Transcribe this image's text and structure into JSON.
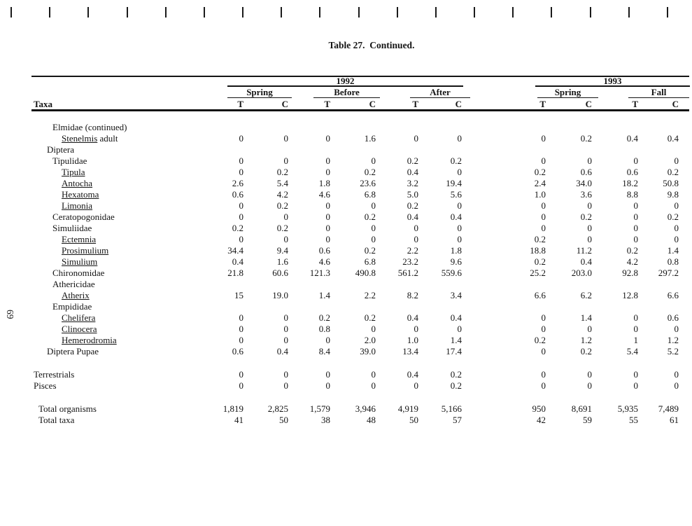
{
  "page": {
    "title": "Table 27.  Continued.",
    "page_number": "69",
    "top_tick_count": 18,
    "ink_color": "#141414",
    "paper_color": "#ffffff"
  },
  "table": {
    "header": {
      "taxa": "Taxa",
      "g1992": "1992",
      "g1993": "1993",
      "spring92": "Spring",
      "before92": "Before",
      "after92": "After",
      "spring93": "Spring",
      "fall93": "Fall",
      "t": "T",
      "c": "C"
    },
    "columns": [
      "1992 Spring T",
      "1992 Spring C",
      "1992 Before T",
      "1992 Before C",
      "1992 After T",
      "1992 After C",
      "1993 Spring T",
      "1993 Spring C",
      "1993 Fall T",
      "1993 Fall C"
    ],
    "rows": [
      {
        "label": "Elmidae (continued)",
        "indent": 2,
        "underline": false,
        "suffix": "",
        "values": [
          "",
          "",
          "",
          "",
          "",
          "",
          "",
          "",
          "",
          ""
        ]
      },
      {
        "label": "Stenelmis",
        "indent": 3,
        "underline": true,
        "suffix": " adult",
        "values": [
          "0",
          "0",
          "0",
          "1.6",
          "0",
          "0",
          "0",
          "0.2",
          "0.4",
          "0.4"
        ]
      },
      {
        "label": "Diptera",
        "indent": 1,
        "underline": false,
        "suffix": "",
        "values": [
          "",
          "",
          "",
          "",
          "",
          "",
          "",
          "",
          "",
          ""
        ]
      },
      {
        "label": "Tipulidae",
        "indent": 2,
        "underline": false,
        "suffix": "",
        "values": [
          "0",
          "0",
          "0",
          "0",
          "0.2",
          "0.2",
          "0",
          "0",
          "0",
          "0"
        ]
      },
      {
        "label": "Tipula",
        "indent": 3,
        "underline": true,
        "suffix": "",
        "values": [
          "0",
          "0.2",
          "0",
          "0.2",
          "0.4",
          "0",
          "0.2",
          "0.6",
          "0.6",
          "0.2"
        ]
      },
      {
        "label": "Antocha",
        "indent": 3,
        "underline": true,
        "suffix": "",
        "values": [
          "2.6",
          "5.4",
          "1.8",
          "23.6",
          "3.2",
          "19.4",
          "2.4",
          "34.0",
          "18.2",
          "50.8"
        ]
      },
      {
        "label": "Hexatoma",
        "indent": 3,
        "underline": true,
        "suffix": "",
        "values": [
          "0.6",
          "4.2",
          "4.6",
          "6.8",
          "5.0",
          "5.6",
          "1.0",
          "3.6",
          "8.8",
          "9.8"
        ]
      },
      {
        "label": "Limonia",
        "indent": 3,
        "underline": true,
        "suffix": "",
        "values": [
          "0",
          "0.2",
          "0",
          "0",
          "0.2",
          "0",
          "0",
          "0",
          "0",
          "0"
        ]
      },
      {
        "label": "Ceratopogonidae",
        "indent": 2,
        "underline": false,
        "suffix": "",
        "values": [
          "0",
          "0",
          "0",
          "0.2",
          "0.4",
          "0.4",
          "0",
          "0.2",
          "0",
          "0.2"
        ]
      },
      {
        "label": "Simuliidae",
        "indent": 2,
        "underline": false,
        "suffix": "",
        "values": [
          "0.2",
          "0.2",
          "0",
          "0",
          "0",
          "0",
          "0",
          "0",
          "0",
          "0"
        ]
      },
      {
        "label": "Ectemnia",
        "indent": 3,
        "underline": true,
        "suffix": "",
        "values": [
          "0",
          "0",
          "0",
          "0",
          "0",
          "0",
          "0.2",
          "0",
          "0",
          "0"
        ]
      },
      {
        "label": "Prosimulium",
        "indent": 3,
        "underline": true,
        "suffix": "",
        "values": [
          "34.4",
          "9.4",
          "0.6",
          "0.2",
          "2.2",
          "1.8",
          "18.8",
          "11.2",
          "0.2",
          "1.4"
        ]
      },
      {
        "label": "Simulium",
        "indent": 3,
        "underline": true,
        "suffix": "",
        "values": [
          "0.4",
          "1.6",
          "4.6",
          "6.8",
          "23.2",
          "9.6",
          "0.2",
          "0.4",
          "4.2",
          "0.8"
        ]
      },
      {
        "label": "Chironomidae",
        "indent": 2,
        "underline": false,
        "suffix": "",
        "values": [
          "21.8",
          "60.6",
          "121.3",
          "490.8",
          "561.2",
          "559.6",
          "25.2",
          "203.0",
          "92.8",
          "297.2"
        ]
      },
      {
        "label": "Athericidae",
        "indent": 2,
        "underline": false,
        "suffix": "",
        "values": [
          "",
          "",
          "",
          "",
          "",
          "",
          "",
          "",
          "",
          ""
        ]
      },
      {
        "label": "Atherix",
        "indent": 3,
        "underline": true,
        "suffix": "",
        "values": [
          "15",
          "19.0",
          "1.4",
          "2.2",
          "8.2",
          "3.4",
          "6.6",
          "6.2",
          "12.8",
          "6.6"
        ]
      },
      {
        "label": "Empididae",
        "indent": 2,
        "underline": false,
        "suffix": "",
        "values": [
          "",
          "",
          "",
          "",
          "",
          "",
          "",
          "",
          "",
          ""
        ]
      },
      {
        "label": "Chelifera",
        "indent": 3,
        "underline": true,
        "suffix": "",
        "values": [
          "0",
          "0",
          "0.2",
          "0.2",
          "0.4",
          "0.4",
          "0",
          "1.4",
          "0",
          "0.6"
        ]
      },
      {
        "label": "Clinocera",
        "indent": 3,
        "underline": true,
        "suffix": "",
        "values": [
          "0",
          "0",
          "0.8",
          "0",
          "0",
          "0",
          "0",
          "0",
          "0",
          "0"
        ]
      },
      {
        "label": "Hemerodromia",
        "indent": 3,
        "underline": true,
        "suffix": "",
        "values": [
          "0",
          "0",
          "0",
          "2.0",
          "1.0",
          "1.4",
          "0.2",
          "1.2",
          "1",
          "1.2"
        ]
      },
      {
        "label": "Diptera Pupae",
        "indent": 1,
        "underline": false,
        "suffix": "",
        "values": [
          "0.6",
          "0.4",
          "8.4",
          "39.0",
          "13.4",
          "17.4",
          "0",
          "0.2",
          "5.4",
          "5.2"
        ]
      },
      {
        "spacer": true
      },
      {
        "label": "Terrestrials",
        "indent": 0,
        "underline": false,
        "suffix": "",
        "values": [
          "0",
          "0",
          "0",
          "0",
          "0.4",
          "0.2",
          "0",
          "0",
          "0",
          "0"
        ]
      },
      {
        "label": "Pisces",
        "indent": 0,
        "underline": false,
        "suffix": "",
        "values": [
          "0",
          "0",
          "0",
          "0",
          "0",
          "0.2",
          "0",
          "0",
          "0",
          "0"
        ]
      },
      {
        "spacer": true
      },
      {
        "label": "Total organisms",
        "indent": "t",
        "underline": false,
        "suffix": "",
        "values": [
          "1,819",
          "2,825",
          "1,579",
          "3,946",
          "4,919",
          "5,166",
          "950",
          "8,691",
          "5,935",
          "7,489"
        ]
      },
      {
        "label": "Total taxa",
        "indent": "t",
        "underline": false,
        "suffix": "",
        "values": [
          "41",
          "50",
          "38",
          "48",
          "50",
          "57",
          "42",
          "59",
          "55",
          "61"
        ]
      }
    ]
  }
}
